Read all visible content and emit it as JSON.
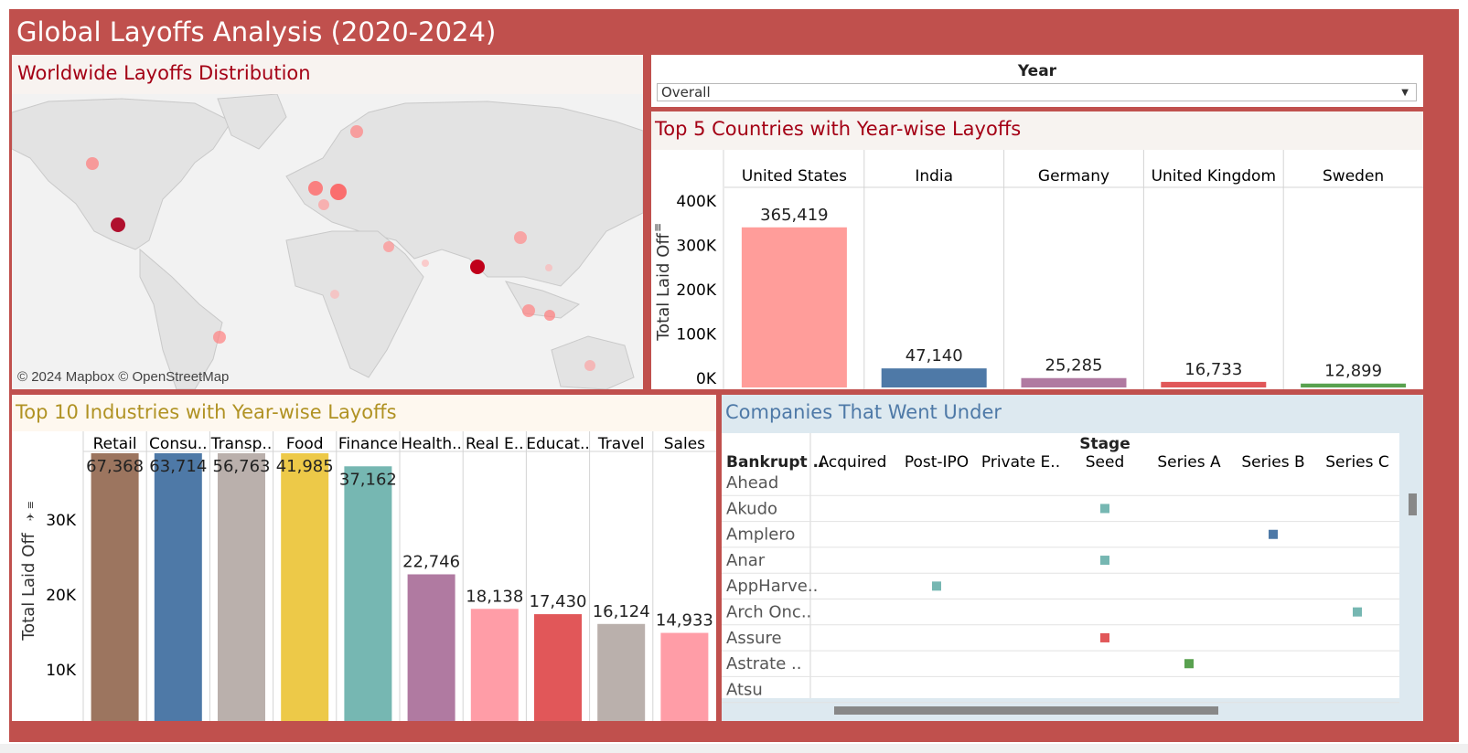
{
  "dashboard": {
    "title": "Global Layoffs Analysis (2020-2024)",
    "accent_color": "#c0504d"
  },
  "map": {
    "title": "Worldwide Layoffs Distribution",
    "attribution": "© 2024 Mapbox © OpenStreetMap"
  },
  "filter": {
    "label": "Year",
    "selected": "Overall",
    "icon": "chevron-down-icon"
  },
  "countries": {
    "title": "Top 5 Countries with Year-wise Layoffs",
    "sort_icon": "sort-icon",
    "chart_data": {
      "type": "bar",
      "categories": [
        "United States",
        "India",
        "Germany",
        "United Kingdom",
        "Sweden"
      ],
      "values": [
        365419,
        47140,
        25285,
        16733,
        12899
      ],
      "value_labels": [
        "365,419",
        "47,140",
        "25,285",
        "16,733",
        "12,899"
      ],
      "colors": [
        "#ff9d9a",
        "#4e79a7",
        "#b07aa1",
        "#e15759",
        "#59a14f"
      ],
      "ylabel": "Total Laid Off",
      "yticks": [
        "400K",
        "300K",
        "200K",
        "100K",
        "0K"
      ],
      "ytick_values": [
        400000,
        300000,
        200000,
        100000,
        0
      ],
      "ylim": [
        0,
        400000
      ]
    }
  },
  "industries": {
    "title": "Top 10 Industries with Year-wise Layoffs",
    "sort_icon": "sort-icon",
    "chart_data": {
      "type": "bar",
      "categories": [
        "Retail",
        "Consu..",
        "Transp..",
        "Food",
        "Finance",
        "Health..",
        "Real E..",
        "Educat..",
        "Travel",
        "Sales"
      ],
      "values": [
        67368,
        63714,
        56763,
        41985,
        37162,
        22746,
        18138,
        17430,
        16124,
        14933
      ],
      "value_labels": [
        "67,368",
        "63,714",
        "56,763",
        "41,985",
        "37,162",
        "22,746",
        "18,138",
        "17,430",
        "16,124",
        "14,933"
      ],
      "colors": [
        "#9c755f",
        "#4e79a7",
        "#bab0ac",
        "#edc948",
        "#76b7b2",
        "#b07aa1",
        "#ff9da7",
        "#e15759",
        "#bab0ac",
        "#ff9da7"
      ],
      "ylabel": "Total Laid Off",
      "yticks": [
        "30K",
        "20K",
        "10K"
      ],
      "ytick_values": [
        30000,
        20000,
        10000
      ],
      "ylim": [
        5000,
        37000
      ]
    }
  },
  "companies": {
    "title": "Companies That Went Under",
    "stage_header": "Stage",
    "row_header": "Bankrupt ..",
    "columns": [
      "Acquired",
      "Post-IPO",
      "Private E..",
      "Seed",
      "Series A",
      "Series B",
      "Series C"
    ],
    "rows": [
      {
        "name": "Ahead",
        "stage_index": -1,
        "color": ""
      },
      {
        "name": "Akudo",
        "stage_index": 3,
        "color": "#76b7b2"
      },
      {
        "name": "Amplero",
        "stage_index": 5,
        "color": "#4e79a7"
      },
      {
        "name": "Anar",
        "stage_index": 3,
        "color": "#76b7b2"
      },
      {
        "name": "AppHarve..",
        "stage_index": 1,
        "color": "#76b7b2"
      },
      {
        "name": "Arch Onc..",
        "stage_index": 6,
        "color": "#76b7b2"
      },
      {
        "name": "Assure",
        "stage_index": 3,
        "color": "#e15759"
      },
      {
        "name": "Astrate ..",
        "stage_index": 4,
        "color": "#59a14f"
      },
      {
        "name": "Atsu",
        "stage_index": -1,
        "color": ""
      }
    ]
  }
}
